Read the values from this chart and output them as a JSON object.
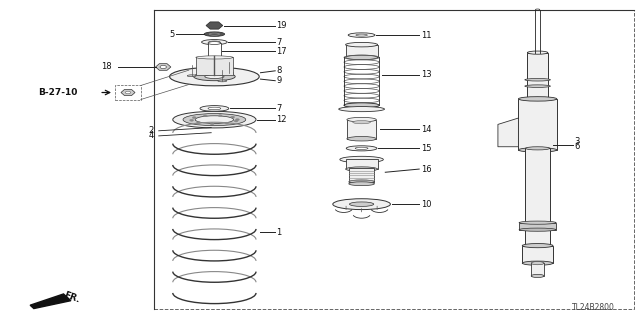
{
  "bg_color": "#ffffff",
  "line_color": "#222222",
  "diagram_code": "TL24B2800",
  "ref_code": "B-27-10",
  "border_lc": "#666666",
  "part_lc": "#333333",
  "part_fc": "#f0f0f0",
  "dark_fc": "#555555",
  "gray_fc": "#cccccc",
  "white_fc": "#ffffff",
  "figsize": [
    6.4,
    3.19
  ],
  "dpi": 100,
  "border": [
    0.24,
    0.03,
    0.99,
    0.97
  ]
}
